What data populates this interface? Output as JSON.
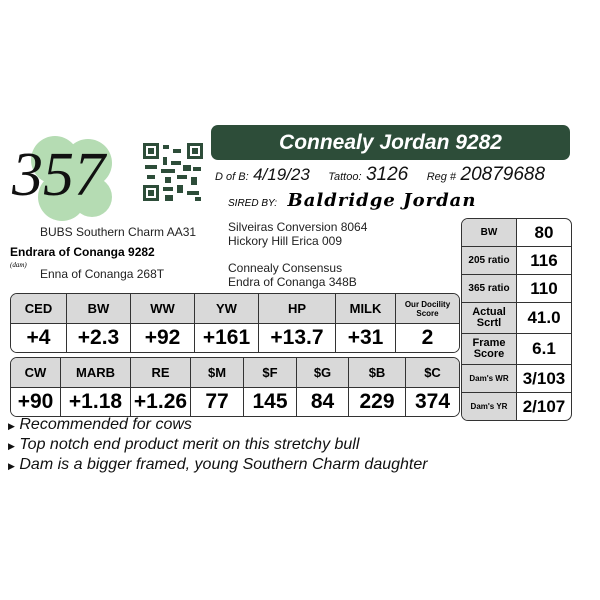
{
  "lot_number": "357",
  "title": "Connealy Jordan 9282",
  "dob_label": "D of B:",
  "dob": "4/19/23",
  "tattoo_label": "Tattoo:",
  "tattoo": "3126",
  "reg_label": "Reg #",
  "reg": "20879688",
  "sired_by_label": "SIRED BY:",
  "sire": "Baldridge Jordan",
  "pedigree": {
    "dam_sire": "BUBS Southern Charm AA31",
    "dam": "Endrara of Conanga 9282",
    "dam_label": "(dam)",
    "dam_dam": "Enna of Conanga 268T",
    "sire_sire": "Silveiras Conversion 8064",
    "sire_dam": "Hickory Hill Erica 009",
    "ss_line1": "Connealy Consensus",
    "ss_line2": "Endra of Conanga 348B"
  },
  "epd1": {
    "headers": [
      "CED",
      "BW",
      "WW",
      "YW",
      "HP",
      "MILK",
      "Our Docility Score"
    ],
    "values": [
      "+4",
      "+2.3",
      "+92",
      "+161",
      "+13.7",
      "+31",
      "2"
    ]
  },
  "epd2": {
    "headers": [
      "CW",
      "MARB",
      "RE",
      "$M",
      "$F",
      "$G",
      "$B",
      "$C"
    ],
    "values": [
      "+90",
      "+1.18",
      "+1.26",
      "77",
      "145",
      "84",
      "229",
      "374"
    ]
  },
  "stats": [
    {
      "label": "BW",
      "value": "80"
    },
    {
      "label": "205 ratio",
      "value": "116"
    },
    {
      "label": "365 ratio",
      "value": "110"
    },
    {
      "label": "Actual Scrtl",
      "value": "41.0"
    },
    {
      "label": "Frame Score",
      "value": "6.1"
    },
    {
      "label": "Dam's WR",
      "value": "3/103"
    },
    {
      "label": "Dam's YR",
      "value": "2/107"
    }
  ],
  "notes": [
    "Recommended for cows",
    "Top notch end product merit on this stretchy bull",
    "Dam is a bigger framed, young Southern Charm daughter"
  ],
  "colors": {
    "banner": "#2d4d39",
    "clover": "#a8d4a8",
    "header_cell": "#d9d9d9"
  }
}
